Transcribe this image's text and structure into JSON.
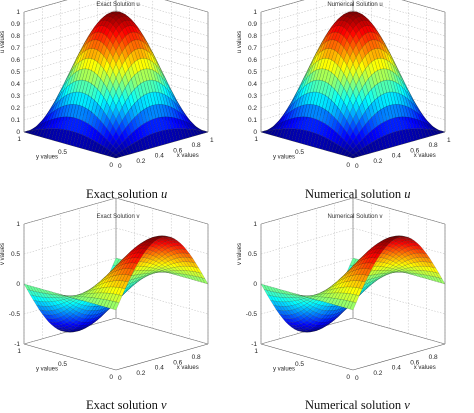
{
  "chart_data": [
    {
      "type": "surface",
      "title": "Exact Solution u",
      "caption": "Exact solution",
      "caption_symbol": "u",
      "xlabel": "x values",
      "ylabel": "y values",
      "zlabel": "u values",
      "function": "sin(pi x) sin(pi y)",
      "xlim": [
        0,
        1
      ],
      "ylim": [
        0,
        1
      ],
      "zlim": [
        0,
        1
      ],
      "xticks": [
        "0",
        "0.2",
        "0.4",
        "0.6",
        "0.8",
        "1"
      ],
      "yticks": [
        "0",
        "0.5",
        "1"
      ],
      "zticks": [
        "0",
        "0.1",
        "0.2",
        "0.3",
        "0.4",
        "0.5",
        "0.6",
        "0.7",
        "0.8",
        "0.9",
        "1"
      ],
      "peak": {
        "x": 0.5,
        "y": 0.5,
        "z": 1.0
      }
    },
    {
      "type": "surface",
      "title": "Numerical Solution u",
      "caption": "Numerical solution",
      "caption_symbol": "u",
      "xlabel": "x values",
      "ylabel": "y values",
      "zlabel": "u values",
      "function": "sin(pi x) sin(pi y)",
      "xlim": [
        0,
        1
      ],
      "ylim": [
        0,
        1
      ],
      "zlim": [
        0,
        1
      ],
      "xticks": [
        "0",
        "0.2",
        "0.4",
        "0.6",
        "0.8",
        "1"
      ],
      "yticks": [
        "0",
        "0.5",
        "1"
      ],
      "zticks": [
        "0",
        "0.1",
        "0.2",
        "0.3",
        "0.4",
        "0.5",
        "0.6",
        "0.7",
        "0.8",
        "0.9",
        "1"
      ],
      "peak": {
        "x": 0.5,
        "y": 0.5,
        "z": 1.0
      }
    },
    {
      "type": "surface",
      "title": "Exact Solution v",
      "caption": "Exact solution",
      "caption_symbol": "v",
      "xlabel": "x values",
      "ylabel": "y values",
      "zlabel": "v values",
      "function": "sin(pi x) cos(pi y)",
      "xlim": [
        0,
        1
      ],
      "ylim": [
        0,
        1
      ],
      "zlim": [
        -1,
        1
      ],
      "xticks": [
        "0",
        "0.2",
        "0.4",
        "0.6",
        "0.8"
      ],
      "yticks": [
        "0",
        "0.5",
        "1"
      ],
      "zticks": [
        "-1",
        "-0.5",
        "0",
        "0.5",
        "1"
      ],
      "peak": {
        "x": 0.5,
        "y": 0,
        "z": 1.0
      }
    },
    {
      "type": "surface",
      "title": "Numerical Solution v",
      "caption": "Numerical solution",
      "caption_symbol": "v",
      "xlabel": "x values",
      "ylabel": "y values",
      "zlabel": "v values",
      "function": "sin(pi x) cos(pi y)",
      "xlim": [
        0,
        1
      ],
      "ylim": [
        0,
        1
      ],
      "zlim": [
        -1,
        1
      ],
      "xticks": [
        "0",
        "0.2",
        "0.4",
        "0.6",
        "0.8"
      ],
      "yticks": [
        "0",
        "0.5",
        "1"
      ],
      "zticks": [
        "-1",
        "-0.5",
        "0",
        "0.5",
        "1"
      ],
      "peak": {
        "x": 0.5,
        "y": 0,
        "z": 1.0
      }
    }
  ]
}
